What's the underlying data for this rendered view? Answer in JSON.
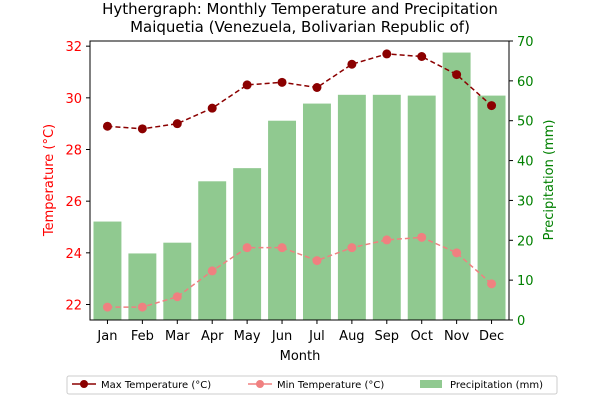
{
  "chart_data": {
    "type": "bar",
    "title_line1": "Hythergraph: Monthly Temperature and Precipitation",
    "title_line2": "Maiquetia (Venezuela, Bolivarian Republic of)",
    "xlabel": "Month",
    "ylabel_left": "Temperature (°C)",
    "ylabel_right": "Precipitation (mm)",
    "categories": [
      "Jan",
      "Feb",
      "Mar",
      "Apr",
      "May",
      "Jun",
      "Jul",
      "Aug",
      "Sep",
      "Oct",
      "Nov",
      "Dec"
    ],
    "ylim_left": [
      21.4,
      32.2
    ],
    "ylim_right": [
      0,
      70
    ],
    "yticks_left": [
      22,
      24,
      26,
      28,
      30,
      32
    ],
    "yticks_right": [
      0,
      10,
      20,
      30,
      40,
      50,
      60,
      70
    ],
    "series": [
      {
        "name": "Max Temperature (°C)",
        "kind": "line",
        "axis": "left",
        "color": "#8b0000",
        "values": [
          28.9,
          28.8,
          29.0,
          29.6,
          30.5,
          30.6,
          30.4,
          31.3,
          31.7,
          31.6,
          30.9,
          29.7
        ]
      },
      {
        "name": "Min Temperature (°C)",
        "kind": "line",
        "axis": "left",
        "color": "#f08080",
        "values": [
          21.9,
          21.9,
          22.3,
          23.3,
          24.2,
          24.2,
          23.7,
          24.2,
          24.5,
          24.6,
          24.0,
          22.8
        ]
      },
      {
        "name": "Precipitation (mm)",
        "kind": "bar",
        "axis": "right",
        "color": "#90c990",
        "values": [
          24.7,
          16.7,
          19.4,
          34.8,
          38.1,
          50.0,
          54.3,
          56.5,
          56.5,
          56.3,
          67.1,
          56.3
        ]
      }
    ],
    "legend_position": "bottom-center"
  }
}
